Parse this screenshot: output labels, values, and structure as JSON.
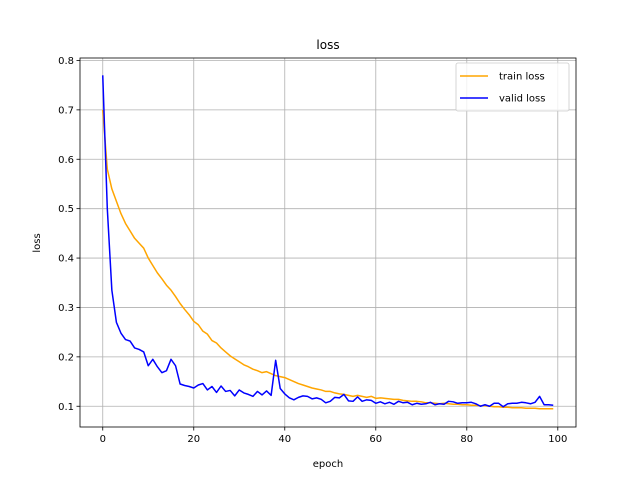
{
  "chart_data": {
    "type": "line",
    "title": "loss",
    "xlabel": "epoch",
    "ylabel": "loss",
    "xlim": [
      -5,
      104
    ],
    "ylim": [
      0.058,
      0.805
    ],
    "xticks": [
      0,
      20,
      40,
      60,
      80,
      100
    ],
    "yticks": [
      0.1,
      0.2,
      0.3,
      0.4,
      0.5,
      0.6,
      0.7,
      0.8
    ],
    "xtick_labels": [
      "0",
      "20",
      "40",
      "60",
      "80",
      "100"
    ],
    "ytick_labels": [
      "0.1",
      "0.2",
      "0.3",
      "0.4",
      "0.5",
      "0.6",
      "0.7",
      "0.8"
    ],
    "grid": true,
    "legend": "top-right",
    "series": [
      {
        "name": "train loss",
        "color": "#ffa500",
        "x": [
          0,
          1,
          2,
          3,
          4,
          5,
          6,
          7,
          8,
          9,
          10,
          11,
          12,
          13,
          14,
          15,
          16,
          17,
          18,
          19,
          20,
          21,
          22,
          23,
          24,
          25,
          26,
          27,
          28,
          29,
          30,
          31,
          32,
          33,
          34,
          35,
          36,
          37,
          38,
          39,
          40,
          41,
          42,
          43,
          44,
          45,
          46,
          47,
          48,
          49,
          50,
          51,
          52,
          53,
          54,
          55,
          56,
          57,
          58,
          59,
          60,
          61,
          62,
          63,
          64,
          65,
          66,
          67,
          68,
          69,
          70,
          71,
          72,
          73,
          74,
          75,
          76,
          77,
          78,
          79,
          80,
          81,
          82,
          83,
          84,
          85,
          86,
          87,
          88,
          89,
          90,
          91,
          92,
          93,
          94,
          95,
          96,
          97,
          98,
          99
        ],
        "values": [
          0.7,
          0.58,
          0.54,
          0.515,
          0.49,
          0.47,
          0.455,
          0.44,
          0.43,
          0.42,
          0.4,
          0.385,
          0.37,
          0.358,
          0.345,
          0.335,
          0.322,
          0.308,
          0.296,
          0.285,
          0.272,
          0.265,
          0.252,
          0.246,
          0.233,
          0.228,
          0.218,
          0.21,
          0.202,
          0.196,
          0.19,
          0.184,
          0.18,
          0.175,
          0.172,
          0.168,
          0.17,
          0.166,
          0.162,
          0.16,
          0.158,
          0.154,
          0.15,
          0.146,
          0.143,
          0.14,
          0.137,
          0.135,
          0.133,
          0.13,
          0.13,
          0.127,
          0.125,
          0.124,
          0.122,
          0.12,
          0.122,
          0.12,
          0.118,
          0.12,
          0.116,
          0.117,
          0.116,
          0.115,
          0.114,
          0.114,
          0.112,
          0.111,
          0.11,
          0.11,
          0.109,
          0.107,
          0.107,
          0.106,
          0.105,
          0.106,
          0.105,
          0.104,
          0.104,
          0.103,
          0.103,
          0.102,
          0.102,
          0.101,
          0.101,
          0.1,
          0.099,
          0.099,
          0.098,
          0.098,
          0.097,
          0.097,
          0.097,
          0.096,
          0.096,
          0.096,
          0.095,
          0.095,
          0.095,
          0.095
        ]
      },
      {
        "name": "valid loss",
        "color": "#0000ff",
        "x": [
          0,
          1,
          2,
          3,
          4,
          5,
          6,
          7,
          8,
          9,
          10,
          11,
          12,
          13,
          14,
          15,
          16,
          17,
          18,
          19,
          20,
          21,
          22,
          23,
          24,
          25,
          26,
          27,
          28,
          29,
          30,
          31,
          32,
          33,
          34,
          35,
          36,
          37,
          38,
          39,
          40,
          41,
          42,
          43,
          44,
          45,
          46,
          47,
          48,
          49,
          50,
          51,
          52,
          53,
          54,
          55,
          56,
          57,
          58,
          59,
          60,
          61,
          62,
          63,
          64,
          65,
          66,
          67,
          68,
          69,
          70,
          71,
          72,
          73,
          74,
          75,
          76,
          77,
          78,
          79,
          80,
          81,
          82,
          83,
          84,
          85,
          86,
          87,
          88,
          89,
          90,
          91,
          92,
          93,
          94,
          95,
          96,
          97,
          98,
          99
        ],
        "values": [
          0.77,
          0.5,
          0.335,
          0.27,
          0.248,
          0.235,
          0.232,
          0.218,
          0.215,
          0.21,
          0.182,
          0.195,
          0.18,
          0.168,
          0.172,
          0.195,
          0.182,
          0.145,
          0.142,
          0.14,
          0.137,
          0.143,
          0.146,
          0.133,
          0.14,
          0.128,
          0.141,
          0.13,
          0.132,
          0.121,
          0.133,
          0.127,
          0.124,
          0.12,
          0.13,
          0.123,
          0.131,
          0.122,
          0.193,
          0.136,
          0.125,
          0.117,
          0.113,
          0.118,
          0.121,
          0.12,
          0.115,
          0.117,
          0.114,
          0.107,
          0.11,
          0.118,
          0.117,
          0.124,
          0.111,
          0.11,
          0.119,
          0.11,
          0.113,
          0.112,
          0.106,
          0.109,
          0.105,
          0.108,
          0.104,
          0.11,
          0.107,
          0.108,
          0.103,
          0.106,
          0.104,
          0.105,
          0.108,
          0.103,
          0.105,
          0.104,
          0.11,
          0.109,
          0.106,
          0.107,
          0.107,
          0.108,
          0.105,
          0.1,
          0.103,
          0.1,
          0.106,
          0.106,
          0.099,
          0.105,
          0.106,
          0.106,
          0.108,
          0.107,
          0.105,
          0.108,
          0.12,
          0.103,
          0.103,
          0.102
        ]
      }
    ]
  }
}
